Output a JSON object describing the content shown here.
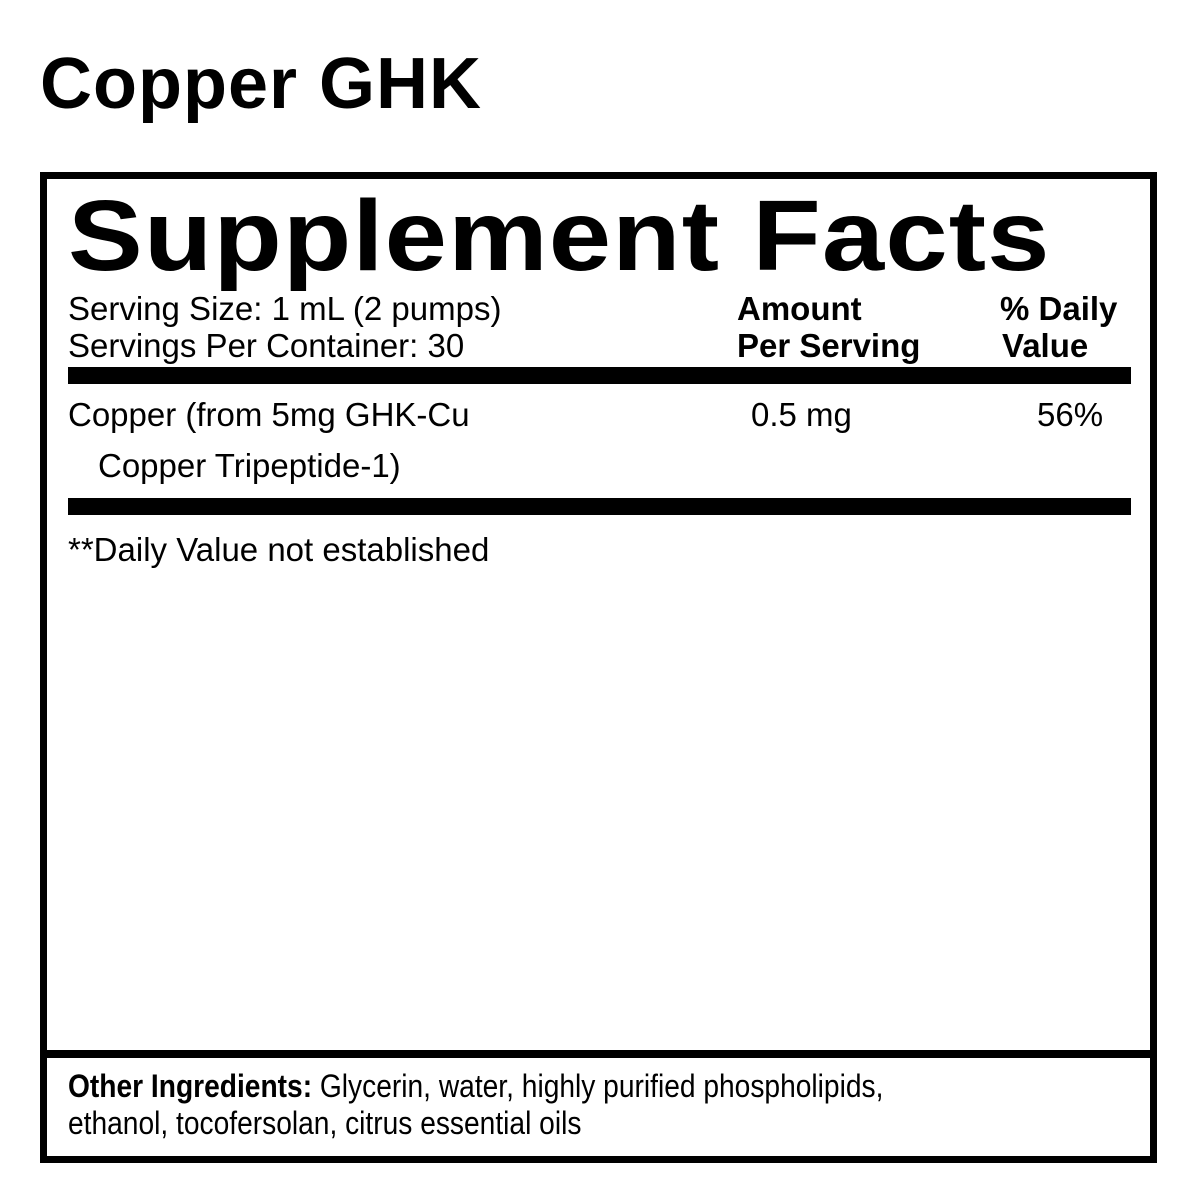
{
  "product_name": "Copper GHK",
  "label": {
    "title": "Supplement Facts",
    "serving_size": "Serving Size: 1 mL (2 pumps)",
    "servings_per_container": "Servings Per Container: 30",
    "header_amount": [
      "Amount",
      "Per Serving"
    ],
    "header_dv": [
      "% Daily",
      "Value"
    ],
    "rows": [
      {
        "name_line1": "Copper (from 5mg GHK-Cu",
        "name_line2": "Copper Tripeptide-1)",
        "amount": "0.5 mg",
        "dv": "56%"
      }
    ],
    "footnote": "**Daily Value not established",
    "other_ingredients_label": "Other Ingredients:",
    "other_ingredients_line1": " Glycerin, water, highly purified phospholipids,",
    "other_ingredients_line2": "ethanol, tocofersolan, citrus essential oils"
  }
}
